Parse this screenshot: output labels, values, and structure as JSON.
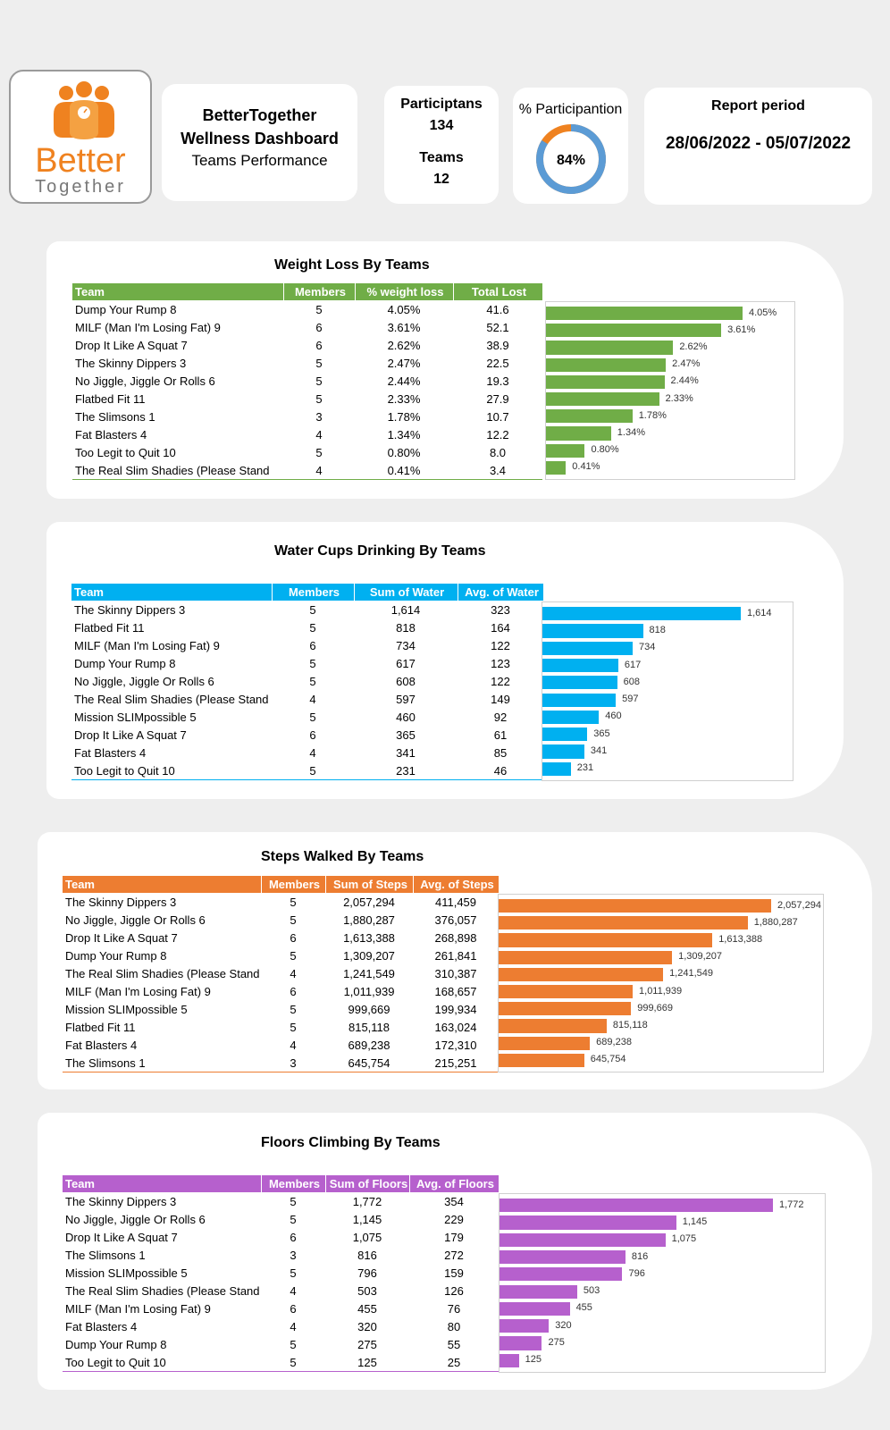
{
  "header": {
    "logo": {
      "word1": "Better",
      "word2": "Together"
    },
    "title_line1": "BetterTogether",
    "title_line2": "Wellness Dashboard",
    "title_line3": "Teams Performance",
    "participants_label": "Participtans",
    "participants_value": "134",
    "teams_label": "Teams",
    "teams_value": "12",
    "participation_label": "% Participantion",
    "participation_value": "84%",
    "participation_fraction": 0.84,
    "report_period_label": "Report period",
    "report_period_value": "28/06/2022 - 05/07/2022"
  },
  "colors": {
    "weight": "#70ad47",
    "water": "#00b0f0",
    "steps": "#ed7d31",
    "floors": "#b660cd",
    "accent": "#ef8220",
    "donut": "#5b9bd5"
  },
  "weight_loss": {
    "title": "Weight Loss By Teams",
    "headers": [
      "Team",
      "Members",
      "% weight loss",
      "Total Lost"
    ],
    "rows": [
      {
        "team": "Dump Your Rump 8",
        "members": "5",
        "v1": "4.05%",
        "v2": "41.6"
      },
      {
        "team": "MILF (Man I'm Losing Fat) 9",
        "members": "6",
        "v1": "3.61%",
        "v2": "52.1"
      },
      {
        "team": "Drop It Like A Squat 7",
        "members": "6",
        "v1": "2.62%",
        "v2": "38.9"
      },
      {
        "team": "The Skinny Dippers 3",
        "members": "5",
        "v1": "2.47%",
        "v2": "22.5"
      },
      {
        "team": "No Jiggle, Jiggle Or Rolls 6",
        "members": "5",
        "v1": "2.44%",
        "v2": "19.3"
      },
      {
        "team": "Flatbed Fit 11",
        "members": "5",
        "v1": "2.33%",
        "v2": "27.9"
      },
      {
        "team": "The Slimsons 1",
        "members": "3",
        "v1": "1.78%",
        "v2": "10.7"
      },
      {
        "team": "Fat Blasters 4",
        "members": "4",
        "v1": "1.34%",
        "v2": "12.2"
      },
      {
        "team": "Too Legit to Quit 10",
        "members": "5",
        "v1": "0.80%",
        "v2": "8.0"
      },
      {
        "team": "The Real Slim Shadies (Please Stand",
        "members": "4",
        "v1": "0.41%",
        "v2": "3.4"
      }
    ]
  },
  "water": {
    "title": "Water Cups Drinking By Teams",
    "headers": [
      "Team",
      "Members",
      "Sum of Water",
      "Avg. of Water"
    ],
    "rows": [
      {
        "team": "The Skinny Dippers 3",
        "members": "5",
        "v1": "1,614",
        "v2": "323"
      },
      {
        "team": "Flatbed Fit 11",
        "members": "5",
        "v1": "818",
        "v2": "164"
      },
      {
        "team": "MILF (Man I'm Losing Fat) 9",
        "members": "6",
        "v1": "734",
        "v2": "122"
      },
      {
        "team": "Dump Your Rump 8",
        "members": "5",
        "v1": "617",
        "v2": "123"
      },
      {
        "team": "No Jiggle, Jiggle Or Rolls 6",
        "members": "5",
        "v1": "608",
        "v2": "122"
      },
      {
        "team": "The Real Slim Shadies (Please Stand",
        "members": "4",
        "v1": "597",
        "v2": "149"
      },
      {
        "team": "Mission SLIMpossible 5",
        "members": "5",
        "v1": "460",
        "v2": "92"
      },
      {
        "team": "Drop It Like A Squat 7",
        "members": "6",
        "v1": "365",
        "v2": "61"
      },
      {
        "team": "Fat Blasters 4",
        "members": "4",
        "v1": "341",
        "v2": "85"
      },
      {
        "team": "Too Legit to Quit 10",
        "members": "5",
        "v1": "231",
        "v2": "46"
      }
    ]
  },
  "steps": {
    "title": "Steps Walked By Teams",
    "headers": [
      "Team",
      "Members",
      "Sum of Steps",
      "Avg. of Steps"
    ],
    "rows": [
      {
        "team": "The Skinny Dippers 3",
        "members": "5",
        "v1": "2,057,294",
        "v2": "411,459"
      },
      {
        "team": "No Jiggle, Jiggle Or Rolls 6",
        "members": "5",
        "v1": "1,880,287",
        "v2": "376,057"
      },
      {
        "team": "Drop It Like A Squat 7",
        "members": "6",
        "v1": "1,613,388",
        "v2": "268,898"
      },
      {
        "team": "Dump Your Rump 8",
        "members": "5",
        "v1": "1,309,207",
        "v2": "261,841"
      },
      {
        "team": "The Real Slim Shadies (Please Stand",
        "members": "4",
        "v1": "1,241,549",
        "v2": "310,387"
      },
      {
        "team": "MILF (Man I'm Losing Fat) 9",
        "members": "6",
        "v1": "1,011,939",
        "v2": "168,657"
      },
      {
        "team": "Mission SLIMpossible 5",
        "members": "5",
        "v1": "999,669",
        "v2": "199,934"
      },
      {
        "team": "Flatbed Fit 11",
        "members": "5",
        "v1": "815,118",
        "v2": "163,024"
      },
      {
        "team": "Fat Blasters 4",
        "members": "4",
        "v1": "689,238",
        "v2": "172,310"
      },
      {
        "team": "The Slimsons 1",
        "members": "3",
        "v1": "645,754",
        "v2": "215,251"
      }
    ]
  },
  "floors": {
    "title": "Floors Climbing By Teams",
    "headers": [
      "Team",
      "Members",
      "Sum of Floors",
      "Avg. of Floors"
    ],
    "rows": [
      {
        "team": "The Skinny Dippers 3",
        "members": "5",
        "v1": "1,772",
        "v2": "354"
      },
      {
        "team": "No Jiggle, Jiggle Or Rolls 6",
        "members": "5",
        "v1": "1,145",
        "v2": "229"
      },
      {
        "team": "Drop It Like A Squat 7",
        "members": "6",
        "v1": "1,075",
        "v2": "179"
      },
      {
        "team": "The Slimsons 1",
        "members": "3",
        "v1": "816",
        "v2": "272"
      },
      {
        "team": "Mission SLIMpossible 5",
        "members": "5",
        "v1": "796",
        "v2": "159"
      },
      {
        "team": "The Real Slim Shadies (Please Stand",
        "members": "4",
        "v1": "503",
        "v2": "126"
      },
      {
        "team": "MILF (Man I'm Losing Fat) 9",
        "members": "6",
        "v1": "455",
        "v2": "76"
      },
      {
        "team": "Fat Blasters 4",
        "members": "4",
        "v1": "320",
        "v2": "80"
      },
      {
        "team": "Dump Your Rump 8",
        "members": "5",
        "v1": "275",
        "v2": "55"
      },
      {
        "team": "Too Legit to Quit 10",
        "members": "5",
        "v1": "125",
        "v2": "25"
      }
    ]
  },
  "chart_data": [
    {
      "type": "bar",
      "title": "Weight Loss By Teams",
      "orientation": "horizontal",
      "categories": [
        "Dump Your Rump 8",
        "MILF (Man I'm Losing Fat) 9",
        "Drop It Like A Squat 7",
        "The Skinny Dippers 3",
        "No Jiggle, Jiggle Or Rolls 6",
        "Flatbed Fit 11",
        "The Slimsons 1",
        "Fat Blasters 4",
        "Too Legit to Quit 10",
        "The Real Slim Shadies (Please Stand"
      ],
      "values": [
        4.05,
        3.61,
        2.62,
        2.47,
        2.44,
        2.33,
        1.78,
        1.34,
        0.8,
        0.41
      ],
      "labels": [
        "4.05%",
        "3.61%",
        "2.62%",
        "2.47%",
        "2.44%",
        "2.33%",
        "1.78%",
        "1.34%",
        "0.80%",
        "0.41%"
      ]
    },
    {
      "type": "bar",
      "title": "Water Cups Drinking By Teams",
      "orientation": "horizontal",
      "categories": [
        "The Skinny Dippers 3",
        "Flatbed Fit 11",
        "MILF (Man I'm Losing Fat) 9",
        "Dump Your Rump 8",
        "No Jiggle, Jiggle Or Rolls 6",
        "The Real Slim Shadies (Please Stand",
        "Mission SLIMpossible 5",
        "Drop It Like A Squat 7",
        "Fat Blasters 4",
        "Too Legit to Quit 10"
      ],
      "values": [
        1614,
        818,
        734,
        617,
        608,
        597,
        460,
        365,
        341,
        231
      ],
      "labels": [
        "1,614",
        "818",
        "734",
        "617",
        "608",
        "597",
        "460",
        "365",
        "341",
        "231"
      ]
    },
    {
      "type": "bar",
      "title": "Steps Walked By Teams",
      "orientation": "horizontal",
      "categories": [
        "The Skinny Dippers 3",
        "No Jiggle, Jiggle Or Rolls 6",
        "Drop It Like A Squat 7",
        "Dump Your Rump 8",
        "The Real Slim Shadies (Please Stand",
        "MILF (Man I'm Losing Fat) 9",
        "Mission SLIMpossible 5",
        "Flatbed Fit 11",
        "Fat Blasters 4",
        "The Slimsons 1"
      ],
      "values": [
        2057294,
        1880287,
        1613388,
        1309207,
        1241549,
        1011939,
        999669,
        815118,
        689238,
        645754
      ],
      "labels": [
        "2,057,294",
        "1,880,287",
        "1,613,388",
        "1,309,207",
        "1,241,549",
        "1,011,939",
        "999,669",
        "815,118",
        "689,238",
        "645,754"
      ]
    },
    {
      "type": "bar",
      "title": "Floors Climbing By Teams",
      "orientation": "horizontal",
      "categories": [
        "The Skinny Dippers 3",
        "No Jiggle, Jiggle Or Rolls 6",
        "Drop It Like A Squat 7",
        "The Slimsons 1",
        "Mission SLIMpossible 5",
        "The Real Slim Shadies (Please Stand",
        "MILF (Man I'm Losing Fat) 9",
        "Fat Blasters 4",
        "Dump Your Rump 8",
        "Too Legit to Quit 10"
      ],
      "values": [
        1772,
        1145,
        1075,
        816,
        796,
        503,
        455,
        320,
        275,
        125
      ],
      "labels": [
        "1,772",
        "1,145",
        "1,075",
        "816",
        "796",
        "503",
        "455",
        "320",
        "275",
        "125"
      ]
    }
  ]
}
